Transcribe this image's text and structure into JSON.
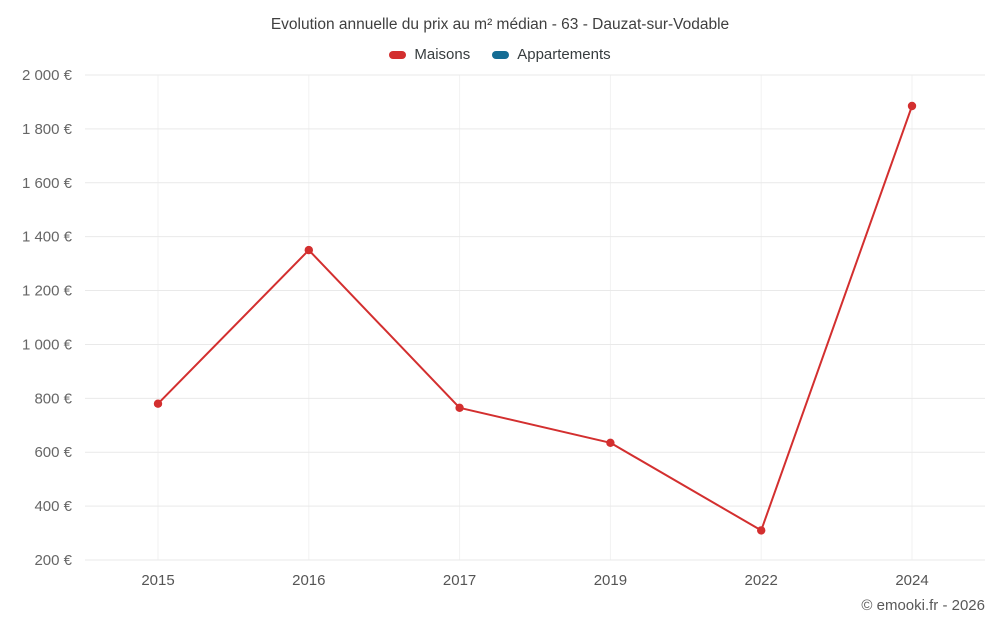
{
  "title": "Evolution annuelle du prix au m² médian - 63 - Dauzat-sur-Vodable",
  "legend": [
    {
      "label": "Maisons",
      "color": "#d32f2f"
    },
    {
      "label": "Appartements",
      "color": "#146c94"
    }
  ],
  "footer": "© emooki.fr - 2026",
  "chart_data": {
    "type": "line",
    "categories": [
      "2015",
      "2016",
      "2017",
      "2019",
      "2022",
      "2024"
    ],
    "series": [
      {
        "name": "Maisons",
        "color": "#d32f2f",
        "values": [
          780,
          1350,
          765,
          635,
          310,
          1885
        ]
      },
      {
        "name": "Appartements",
        "color": "#146c94",
        "values": []
      }
    ],
    "title": "Evolution annuelle du prix au m² médian - 63 - Dauzat-sur-Vodable",
    "xlabel": "",
    "ylabel": "",
    "ylim": [
      200,
      2000
    ],
    "ytick_step": 200,
    "ytick_suffix": " €",
    "grid": true,
    "legend_position": "top"
  }
}
